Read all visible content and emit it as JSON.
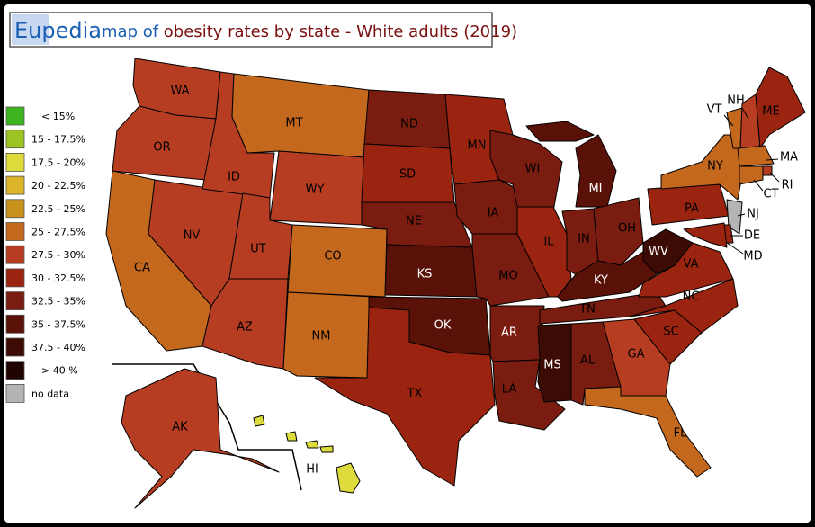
{
  "header": {
    "brand": "Eupedia",
    "title_prefix": "map of",
    "title": "obesity rates by state - White adults (2019)"
  },
  "legend": [
    {
      "label": "< 15%",
      "color": "#3cb521"
    },
    {
      "label": "15 - 17.5%",
      "color": "#9cc423"
    },
    {
      "label": "17.5 - 20%",
      "color": "#dedc3c"
    },
    {
      "label": "20 - 22.5%",
      "color": "#dcb52a"
    },
    {
      "label": "22.5 - 25%",
      "color": "#c9921c"
    },
    {
      "label": "25 - 27.5%",
      "color": "#c4681e"
    },
    {
      "label": "27.5 - 30%",
      "color": "#b73d22"
    },
    {
      "label": "30 - 32.5%",
      "color": "#9a2410"
    },
    {
      "label": "32.5 - 35%",
      "color": "#7a1c0f"
    },
    {
      "label": "35 - 37.5%",
      "color": "#5a1208"
    },
    {
      "label": "37.5 - 40%",
      "color": "#3c0b04"
    },
    {
      "label": "> 40 %",
      "color": "#200402"
    },
    {
      "label": "no data",
      "color": "#b4b4b4"
    }
  ],
  "states": [
    {
      "label": "WA",
      "color": "#b73d22"
    },
    {
      "label": "OR",
      "color": "#b73d22"
    },
    {
      "label": "CA",
      "color": "#c4681e"
    },
    {
      "label": "NV",
      "color": "#b73d22"
    },
    {
      "label": "ID",
      "color": "#b73d22"
    },
    {
      "label": "MT",
      "color": "#c4681e"
    },
    {
      "label": "WY",
      "color": "#b73d22"
    },
    {
      "label": "UT",
      "color": "#b73d22"
    },
    {
      "label": "CO",
      "color": "#c4681e"
    },
    {
      "label": "AZ",
      "color": "#b73d22"
    },
    {
      "label": "NM",
      "color": "#c4681e"
    },
    {
      "label": "ND",
      "color": "#7a1c0f"
    },
    {
      "label": "SD",
      "color": "#9a2410"
    },
    {
      "label": "NE",
      "color": "#7a1c0f"
    },
    {
      "label": "KS",
      "color": "#5a1208"
    },
    {
      "label": "OK",
      "color": "#5a1208"
    },
    {
      "label": "TX",
      "color": "#9a2410"
    },
    {
      "label": "MN",
      "color": "#9a2410"
    },
    {
      "label": "IA",
      "color": "#7a1c0f"
    },
    {
      "label": "MO",
      "color": "#7a1c0f"
    },
    {
      "label": "AR",
      "color": "#7a1c0f"
    },
    {
      "label": "LA",
      "color": "#7a1c0f"
    },
    {
      "label": "WI",
      "color": "#7a1c0f"
    },
    {
      "label": "MI",
      "color": "#5a1208"
    },
    {
      "label": "IL",
      "color": "#9a2410"
    },
    {
      "label": "IN",
      "color": "#7a1c0f"
    },
    {
      "label": "OH",
      "color": "#7a1c0f"
    },
    {
      "label": "KY",
      "color": "#5a1208"
    },
    {
      "label": "TN",
      "color": "#7a1c0f"
    },
    {
      "label": "MS",
      "color": "#3c0b04"
    },
    {
      "label": "AL",
      "color": "#7a1c0f"
    },
    {
      "label": "GA",
      "color": "#b73d22"
    },
    {
      "label": "FL",
      "color": "#c4681e"
    },
    {
      "label": "SC",
      "color": "#9a2410"
    },
    {
      "label": "NC",
      "color": "#9a2410"
    },
    {
      "label": "VA",
      "color": "#9a2410"
    },
    {
      "label": "WV",
      "color": "#3c0b04"
    },
    {
      "label": "PA",
      "color": "#9a2410"
    },
    {
      "label": "NY",
      "color": "#c4681e"
    },
    {
      "label": "VT",
      "color": "#c4681e"
    },
    {
      "label": "NH",
      "color": "#b73d22"
    },
    {
      "label": "ME",
      "color": "#9a2410"
    },
    {
      "label": "MA",
      "color": "#c4681e"
    },
    {
      "label": "RI",
      "color": "#b73d22"
    },
    {
      "label": "CT",
      "color": "#c4681e"
    },
    {
      "label": "NJ",
      "color": "#b4b4b4"
    },
    {
      "label": "DE",
      "color": "#9a2410"
    },
    {
      "label": "MD",
      "color": "#9a2410"
    },
    {
      "label": "AK",
      "color": "#b73d22"
    },
    {
      "label": "HI",
      "color": "#dedc3c"
    }
  ]
}
